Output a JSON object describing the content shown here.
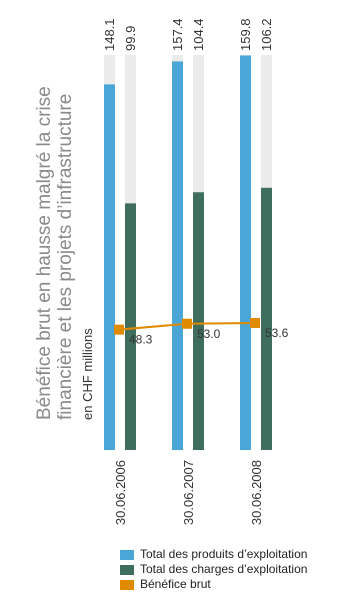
{
  "chart_data": {
    "type": "bar",
    "title": "Bénéfice brut en hausse malgré la crise financière et les projets d’infrastructure",
    "title_lines": [
      "Bénéfice brut en hausse malgré la crise",
      "financière et les projets d’infrastructure"
    ],
    "subtitle": "en CHF millions",
    "categories": [
      "30.06.2006",
      "30.06.2007",
      "30.06.2008"
    ],
    "series": [
      {
        "name": "Total des produits d’exploitation",
        "type": "bar",
        "color": "#4ba6d8",
        "values": [
          148.1,
          157.4,
          159.8
        ],
        "labels": [
          "148.1",
          "157.4",
          "159.8"
        ]
      },
      {
        "name": "Total des charges d’exploitation",
        "type": "bar",
        "color": "#3f6e5f",
        "values": [
          99.9,
          104.4,
          106.2
        ],
        "labels": [
          "99.9",
          "104.4",
          "106.2"
        ]
      },
      {
        "name": "Bénéfice brut",
        "type": "line",
        "color": "#e08a00",
        "values": [
          48.3,
          53.0,
          53.6
        ],
        "labels": [
          "48.3",
          "53.0",
          "53.6"
        ]
      }
    ],
    "ylim": [
      0,
      160
    ],
    "background_bar_color": "#ebebeb",
    "orientation": "rotated-90-ccw",
    "legend_position": "bottom"
  }
}
